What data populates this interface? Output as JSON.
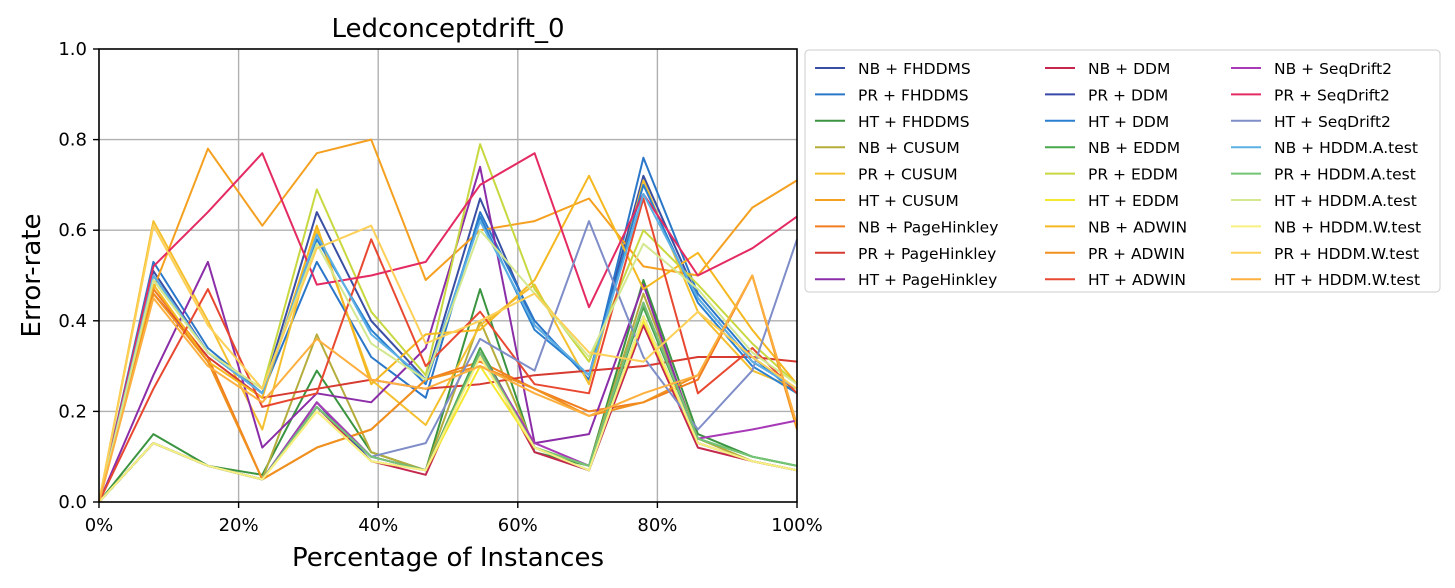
{
  "chart_data": {
    "type": "line",
    "title": "Ledconceptdrift_0",
    "xlabel": "Percentage of Instances",
    "ylabel": "Error-rate",
    "xlim": [
      0,
      100
    ],
    "ylim": [
      0,
      1.0
    ],
    "grid": true,
    "legend_position": "outside-right",
    "legend_columns": 3,
    "x_ticks": [
      "0%",
      "20%",
      "40%",
      "60%",
      "80%",
      "100%"
    ],
    "y_ticks": [
      "0.0",
      "0.2",
      "0.4",
      "0.6",
      "0.8",
      "1.0"
    ],
    "x": [
      0,
      7.8,
      15.6,
      23.4,
      31.2,
      39.0,
      46.8,
      54.6,
      62.4,
      70.2,
      78.0,
      85.8,
      93.6,
      100
    ],
    "series": [
      {
        "name": "NB + FHDDMS",
        "color": "#3a4fa3",
        "values": [
          0.0,
          0.51,
          0.33,
          0.24,
          0.64,
          0.4,
          0.27,
          0.67,
          0.39,
          0.28,
          0.72,
          0.45,
          0.31,
          0.25
        ]
      },
      {
        "name": "PR + FHDDMS",
        "color": "#2a77c9",
        "values": [
          0.0,
          0.53,
          0.34,
          0.24,
          0.53,
          0.32,
          0.23,
          0.64,
          0.4,
          0.27,
          0.76,
          0.46,
          0.32,
          0.24
        ]
      },
      {
        "name": "HT + FHDDMS",
        "color": "#3a9440",
        "values": [
          0.0,
          0.15,
          0.08,
          0.06,
          0.29,
          0.11,
          0.07,
          0.47,
          0.11,
          0.08,
          0.49,
          0.15,
          0.1,
          0.08
        ]
      },
      {
        "name": "NB + CUSUM",
        "color": "#b5ad3c",
        "values": [
          0.0,
          0.13,
          0.08,
          0.05,
          0.37,
          0.11,
          0.07,
          0.4,
          0.12,
          0.08,
          0.46,
          0.14,
          0.09,
          0.07
        ]
      },
      {
        "name": "PR + CUSUM",
        "color": "#f5c030",
        "values": [
          0.0,
          0.62,
          0.4,
          0.16,
          0.6,
          0.27,
          0.17,
          0.39,
          0.48,
          0.26,
          0.71,
          0.42,
          0.29,
          0.25
        ]
      },
      {
        "name": "HT + CUSUM",
        "color": "#f5a020",
        "values": [
          0.0,
          0.47,
          0.78,
          0.61,
          0.77,
          0.8,
          0.49,
          0.6,
          0.62,
          0.67,
          0.52,
          0.5,
          0.65,
          0.71
        ]
      },
      {
        "name": "NB + PageHinkley",
        "color": "#f07e20",
        "values": [
          0.0,
          0.47,
          0.32,
          0.05,
          0.12,
          0.16,
          0.27,
          0.31,
          0.25,
          0.2,
          0.22,
          0.27,
          0.5,
          0.17
        ]
      },
      {
        "name": "PR + PageHinkley",
        "color": "#d63a30",
        "values": [
          0.0,
          0.46,
          0.32,
          0.23,
          0.25,
          0.27,
          0.25,
          0.26,
          0.28,
          0.29,
          0.3,
          0.32,
          0.32,
          0.31
        ]
      },
      {
        "name": "HT + PageHinkley",
        "color": "#8c2da8",
        "values": [
          0.0,
          0.28,
          0.53,
          0.12,
          0.24,
          0.22,
          0.34,
          0.74,
          0.13,
          0.15,
          0.48,
          0.13,
          0.09,
          0.07
        ]
      },
      {
        "name": "NB + DDM",
        "color": "#c4284e",
        "values": [
          0.0,
          0.13,
          0.08,
          0.05,
          0.21,
          0.09,
          0.06,
          0.33,
          0.11,
          0.07,
          0.39,
          0.12,
          0.09,
          0.07
        ]
      },
      {
        "name": "PR + DDM",
        "color": "#3848a8",
        "values": [
          0.0,
          0.13,
          0.08,
          0.05,
          0.22,
          0.09,
          0.07,
          0.33,
          0.12,
          0.07,
          0.41,
          0.13,
          0.09,
          0.07
        ]
      },
      {
        "name": "HT + DDM",
        "color": "#2a80d0",
        "values": [
          0.0,
          0.5,
          0.33,
          0.24,
          0.58,
          0.38,
          0.26,
          0.63,
          0.38,
          0.28,
          0.7,
          0.44,
          0.3,
          0.24
        ]
      },
      {
        "name": "NB + EDDM",
        "color": "#48a84c",
        "values": [
          0.0,
          0.13,
          0.08,
          0.05,
          0.22,
          0.1,
          0.07,
          0.34,
          0.12,
          0.08,
          0.43,
          0.14,
          0.1,
          0.08
        ]
      },
      {
        "name": "PR + EDDM",
        "color": "#c8d840",
        "values": [
          0.0,
          0.49,
          0.33,
          0.25,
          0.69,
          0.42,
          0.28,
          0.79,
          0.47,
          0.31,
          0.6,
          0.48,
          0.35,
          0.26
        ]
      },
      {
        "name": "HT + EDDM",
        "color": "#f5e830",
        "values": [
          0.0,
          0.13,
          0.08,
          0.05,
          0.2,
          0.09,
          0.07,
          0.3,
          0.12,
          0.08,
          0.4,
          0.13,
          0.09,
          0.07
        ]
      },
      {
        "name": "NB + ADWIN",
        "color": "#f5b820",
        "values": [
          0.0,
          0.48,
          0.31,
          0.23,
          0.61,
          0.26,
          0.37,
          0.38,
          0.49,
          0.72,
          0.47,
          0.55,
          0.38,
          0.26
        ]
      },
      {
        "name": "PR + ADWIN",
        "color": "#f0901e",
        "values": [
          0.0,
          0.46,
          0.31,
          0.05,
          0.12,
          0.16,
          0.27,
          0.3,
          0.25,
          0.19,
          0.22,
          0.28,
          0.5,
          0.16
        ]
      },
      {
        "name": "HT + ADWIN",
        "color": "#e84830",
        "values": [
          0.0,
          0.25,
          0.47,
          0.21,
          0.24,
          0.58,
          0.3,
          0.42,
          0.26,
          0.24,
          0.67,
          0.24,
          0.34,
          0.24
        ]
      },
      {
        "name": "NB + SeqDrift2",
        "color": "#a83ab8",
        "values": [
          0.0,
          0.13,
          0.08,
          0.05,
          0.22,
          0.1,
          0.07,
          0.33,
          0.13,
          0.08,
          0.44,
          0.14,
          0.16,
          0.18
        ]
      },
      {
        "name": "PR + SeqDrift2",
        "color": "#e42a62",
        "values": [
          0.0,
          0.52,
          0.64,
          0.77,
          0.48,
          0.5,
          0.53,
          0.7,
          0.77,
          0.43,
          0.68,
          0.5,
          0.56,
          0.63
        ]
      },
      {
        "name": "HT + SeqDrift2",
        "color": "#7f8dc8",
        "values": [
          0.0,
          0.13,
          0.08,
          0.05,
          0.21,
          0.1,
          0.13,
          0.36,
          0.29,
          0.62,
          0.32,
          0.16,
          0.29,
          0.58
        ]
      },
      {
        "name": "NB + HDDM.A.test",
        "color": "#5cb0e4",
        "values": [
          0.0,
          0.5,
          0.33,
          0.24,
          0.59,
          0.37,
          0.27,
          0.62,
          0.39,
          0.28,
          0.68,
          0.45,
          0.31,
          0.25
        ]
      },
      {
        "name": "PR + HDDM.A.test",
        "color": "#74c476",
        "values": [
          0.0,
          0.13,
          0.08,
          0.05,
          0.21,
          0.1,
          0.07,
          0.33,
          0.12,
          0.08,
          0.44,
          0.14,
          0.1,
          0.08
        ]
      },
      {
        "name": "HT + HDDM.A.test",
        "color": "#d4e890",
        "values": [
          0.0,
          0.49,
          0.33,
          0.25,
          0.57,
          0.35,
          0.27,
          0.6,
          0.46,
          0.32,
          0.57,
          0.47,
          0.33,
          0.26
        ]
      },
      {
        "name": "NB + HDDM.W.test",
        "color": "#f8f080",
        "values": [
          0.0,
          0.13,
          0.08,
          0.05,
          0.2,
          0.09,
          0.07,
          0.32,
          0.12,
          0.07,
          0.41,
          0.13,
          0.09,
          0.07
        ]
      },
      {
        "name": "PR + HDDM.W.test",
        "color": "#fdd058",
        "values": [
          0.0,
          0.61,
          0.39,
          0.25,
          0.56,
          0.61,
          0.35,
          0.4,
          0.46,
          0.33,
          0.31,
          0.42,
          0.32,
          0.25
        ]
      },
      {
        "name": "HT + HDDM.W.test",
        "color": "#fdb040",
        "values": [
          0.0,
          0.45,
          0.3,
          0.22,
          0.36,
          0.27,
          0.25,
          0.3,
          0.24,
          0.19,
          0.24,
          0.28,
          0.5,
          0.17
        ]
      }
    ]
  }
}
